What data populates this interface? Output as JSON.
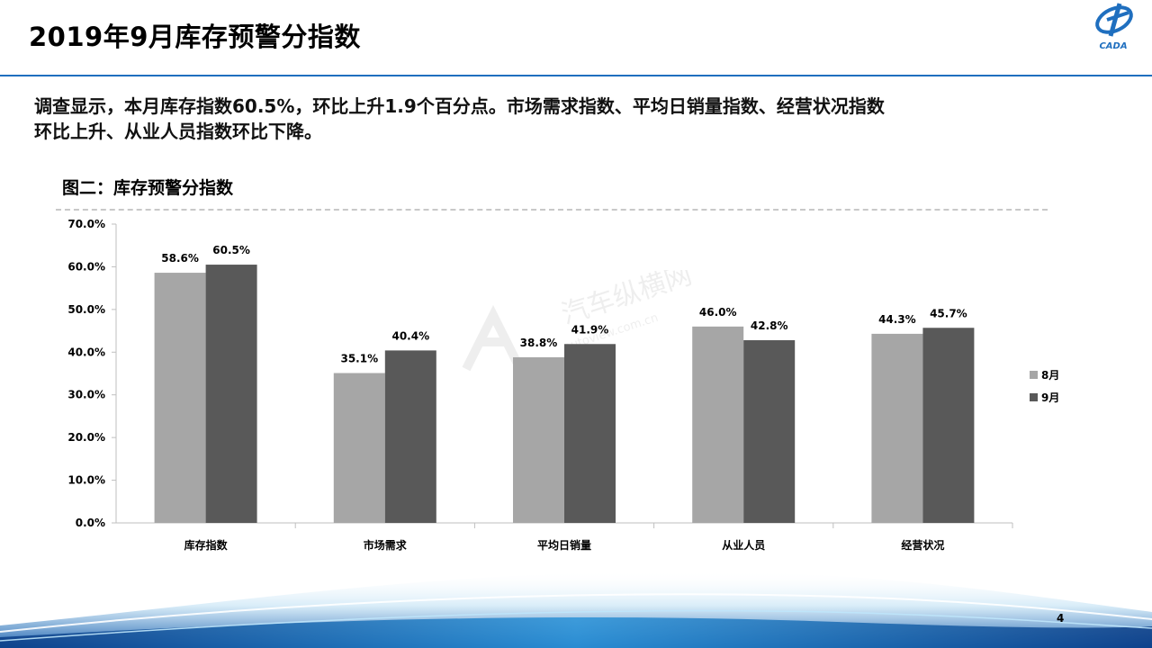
{
  "header": {
    "title": "2019年9月库存预警分指数",
    "logo_text": "CADA"
  },
  "summary": {
    "line1": "调查显示，本月库存指数60.5%，环比上升1.9个百分点。市场需求指数、平均日销量指数、经营状况指数",
    "line2": "环比上升、从业人员指数环比下降。"
  },
  "chart_heading": "图二：库存预警分指数",
  "watermark": {
    "text": "汽车纵横网",
    "url": "autoview.com.cn"
  },
  "page_number": "4",
  "colors": {
    "aug": "#a6a6a6",
    "sep": "#595959",
    "title_rule": "#1f6fbf"
  },
  "chart_data": {
    "type": "bar",
    "title": "",
    "xlabel": "",
    "ylabel": "",
    "categories": [
      "库存指数",
      "市场需求",
      "平均日销量",
      "从业人员",
      "经营状况"
    ],
    "series": [
      {
        "name": "8月",
        "values": [
          58.6,
          35.1,
          38.8,
          46.0,
          44.3
        ],
        "labels": [
          "58.6%",
          "35.1%",
          "38.8%",
          "46.0%",
          "44.3%"
        ]
      },
      {
        "name": "9月",
        "values": [
          60.5,
          40.4,
          41.9,
          42.8,
          45.7
        ],
        "labels": [
          "60.5%",
          "40.4%",
          "41.9%",
          "42.8%",
          "45.7%"
        ]
      }
    ],
    "ylim": [
      0,
      70
    ],
    "yticks": [
      "0.0%",
      "10.0%",
      "20.0%",
      "30.0%",
      "40.0%",
      "50.0%",
      "60.0%",
      "70.0%"
    ],
    "grid": false,
    "legend_position": "right"
  }
}
